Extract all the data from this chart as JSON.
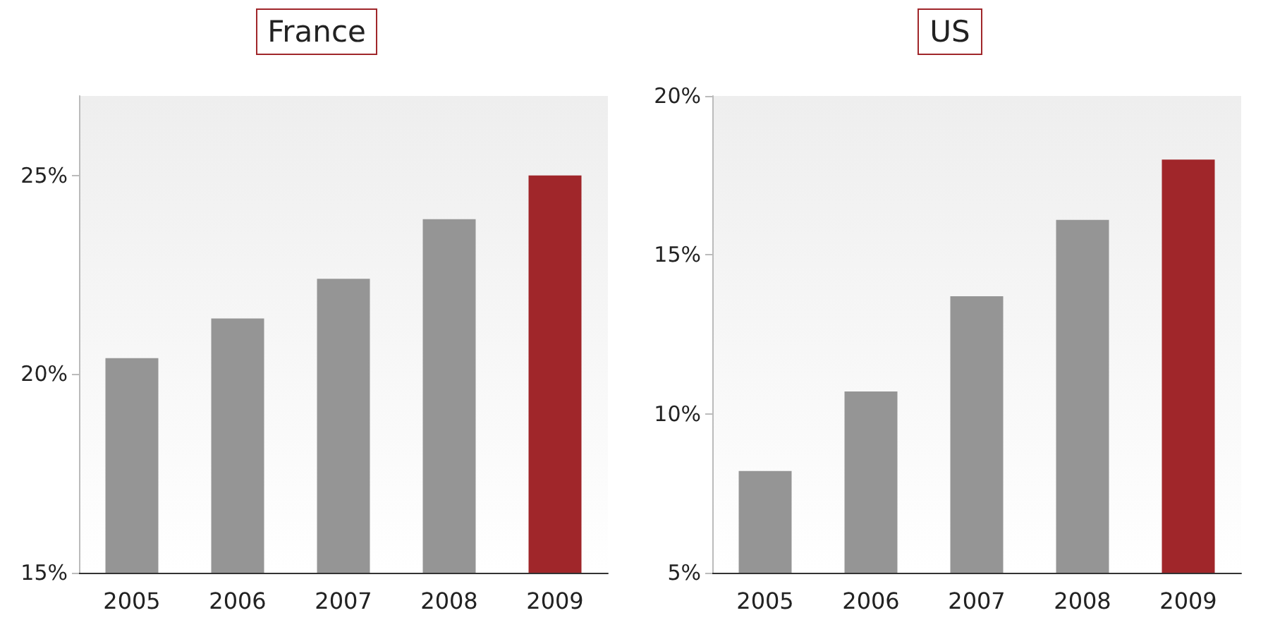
{
  "chart_data": [
    {
      "type": "bar",
      "title": "France",
      "categories": [
        "2005",
        "2006",
        "2007",
        "2008",
        "2009"
      ],
      "values": [
        20.4,
        21.4,
        22.4,
        23.9,
        25.0
      ],
      "colors": [
        "#959595",
        "#959595",
        "#959595",
        "#959595",
        "#a0262a"
      ],
      "ylim": [
        15,
        27
      ],
      "yticks": [
        {
          "value": 15,
          "label": "15%"
        },
        {
          "value": 20,
          "label": "20%"
        },
        {
          "value": 25,
          "label": "25%"
        }
      ]
    },
    {
      "type": "bar",
      "title": "US",
      "categories": [
        "2005",
        "2006",
        "2007",
        "2008",
        "2009"
      ],
      "values": [
        8.2,
        10.7,
        13.7,
        16.1,
        18.0
      ],
      "colors": [
        "#959595",
        "#959595",
        "#959595",
        "#959595",
        "#a0262a"
      ],
      "ylim": [
        5,
        20
      ],
      "yticks": [
        {
          "value": 5,
          "label": "5%"
        },
        {
          "value": 10,
          "label": "10%"
        },
        {
          "value": 15,
          "label": "15%"
        },
        {
          "value": 20,
          "label": "20%"
        }
      ]
    }
  ]
}
